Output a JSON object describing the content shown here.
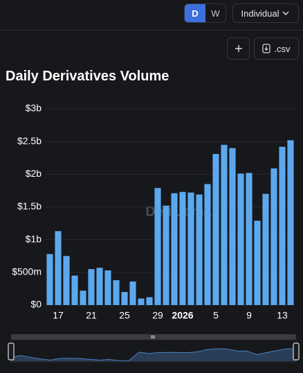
{
  "controls": {
    "period_options": [
      "D",
      "W"
    ],
    "mode": "Individual",
    "csv": ".csv"
  },
  "chart_data": {
    "type": "bar",
    "title": "Daily Derivatives Volume",
    "categories": [
      null,
      "17",
      null,
      null,
      null,
      "21",
      null,
      null,
      null,
      "25",
      null,
      null,
      null,
      "29",
      null,
      null,
      "2026",
      null,
      null,
      null,
      "5",
      null,
      null,
      null,
      "9",
      null,
      null,
      null,
      "13",
      null
    ],
    "values": [
      0.78,
      1.13,
      0.75,
      0.45,
      0.22,
      0.55,
      0.57,
      0.53,
      0.38,
      0.2,
      0.36,
      0.1,
      0.12,
      1.79,
      1.52,
      1.71,
      1.73,
      1.72,
      1.69,
      1.85,
      2.31,
      2.45,
      2.4,
      2.01,
      2.02,
      1.29,
      1.7,
      2.09,
      2.42,
      2.52
    ],
    "color": "#5ca8ef",
    "ylim": [
      0,
      3
    ],
    "yticks": [
      {
        "value": 0,
        "label": "$0"
      },
      {
        "value": 0.5,
        "label": "$500m"
      },
      {
        "value": 1,
        "label": "$1b"
      },
      {
        "value": 1.5,
        "label": "$1.5b"
      },
      {
        "value": 2,
        "label": "$2b"
      },
      {
        "value": 2.5,
        "label": "$2.5b"
      },
      {
        "value": 3,
        "label": "$3b"
      }
    ],
    "grid": true,
    "watermark": "DefiLlama"
  }
}
